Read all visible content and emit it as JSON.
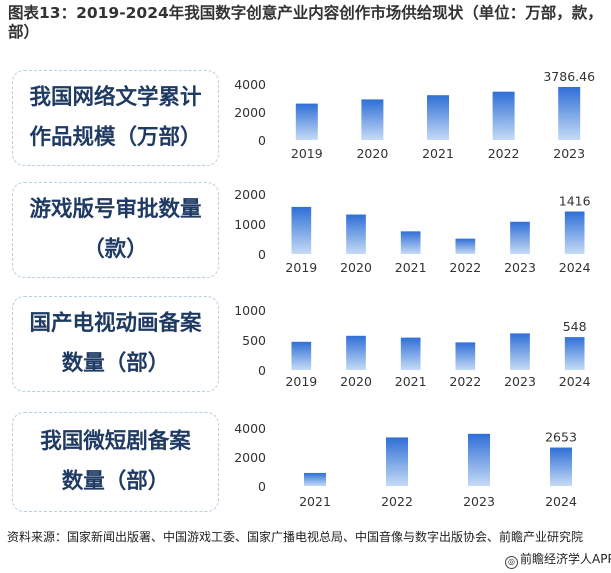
{
  "title": "图表13：2019-2024年我国数字创意产业内容创作市场供给现状（单位：万部，款，部）",
  "colors": {
    "bar_top": "#2f6fd6",
    "bar_bottom": "#c5dbf6",
    "label_box_border": "#b9cde3",
    "label_text": "#1f3a63"
  },
  "panels": [
    {
      "label_line1": "我国网络文学累计",
      "label_line2": "作品规模（万部）"
    },
    {
      "label_line1": "游戏版号审批数量",
      "label_line2": "（款）"
    },
    {
      "label_line1": "国产电视动画备案",
      "label_line2": "数量（部）"
    },
    {
      "label_line1": "我国微短剧备案",
      "label_line2": "数量（部）"
    }
  ],
  "chart_data": [
    {
      "type": "bar",
      "categories": [
        "2019",
        "2020",
        "2021",
        "2022",
        "2023"
      ],
      "values": [
        2600,
        2900,
        3200,
        3450,
        3786.46
      ],
      "ylim": [
        0,
        4000
      ],
      "yticks": [
        0,
        2000,
        4000
      ],
      "data_labels": [
        {
          "index": 4,
          "text": "3786.46"
        }
      ],
      "grid": false
    },
    {
      "type": "bar",
      "categories": [
        "2019",
        "2020",
        "2021",
        "2022",
        "2023",
        "2024"
      ],
      "values": [
        1570,
        1316,
        755,
        512,
        1075,
        1416
      ],
      "ylim": [
        0,
        2000
      ],
      "yticks": [
        0,
        1000,
        2000
      ],
      "data_labels": [
        {
          "index": 5,
          "text": "1416"
        }
      ],
      "grid": false
    },
    {
      "type": "bar",
      "categories": [
        "2019",
        "2020",
        "2021",
        "2022",
        "2023",
        "2024"
      ],
      "values": [
        470,
        570,
        540,
        460,
        610,
        548
      ],
      "ylim": [
        0,
        1000
      ],
      "yticks": [
        0,
        500,
        1000
      ],
      "data_labels": [
        {
          "index": 5,
          "text": "548"
        }
      ],
      "grid": false
    },
    {
      "type": "bar",
      "categories": [
        "2021",
        "2022",
        "2023",
        "2024"
      ],
      "values": [
        900,
        3350,
        3600,
        2653
      ],
      "ylim": [
        0,
        4000
      ],
      "yticks": [
        0,
        2000,
        4000
      ],
      "data_labels": [
        {
          "index": 3,
          "text": "2653"
        }
      ],
      "grid": false
    }
  ],
  "source": "资料来源：国家新闻出版署、中国游戏工委、国家广播电视总局、中国音像与数字出版协会、前瞻产业研究院",
  "brand": "前瞻经济学人APP"
}
